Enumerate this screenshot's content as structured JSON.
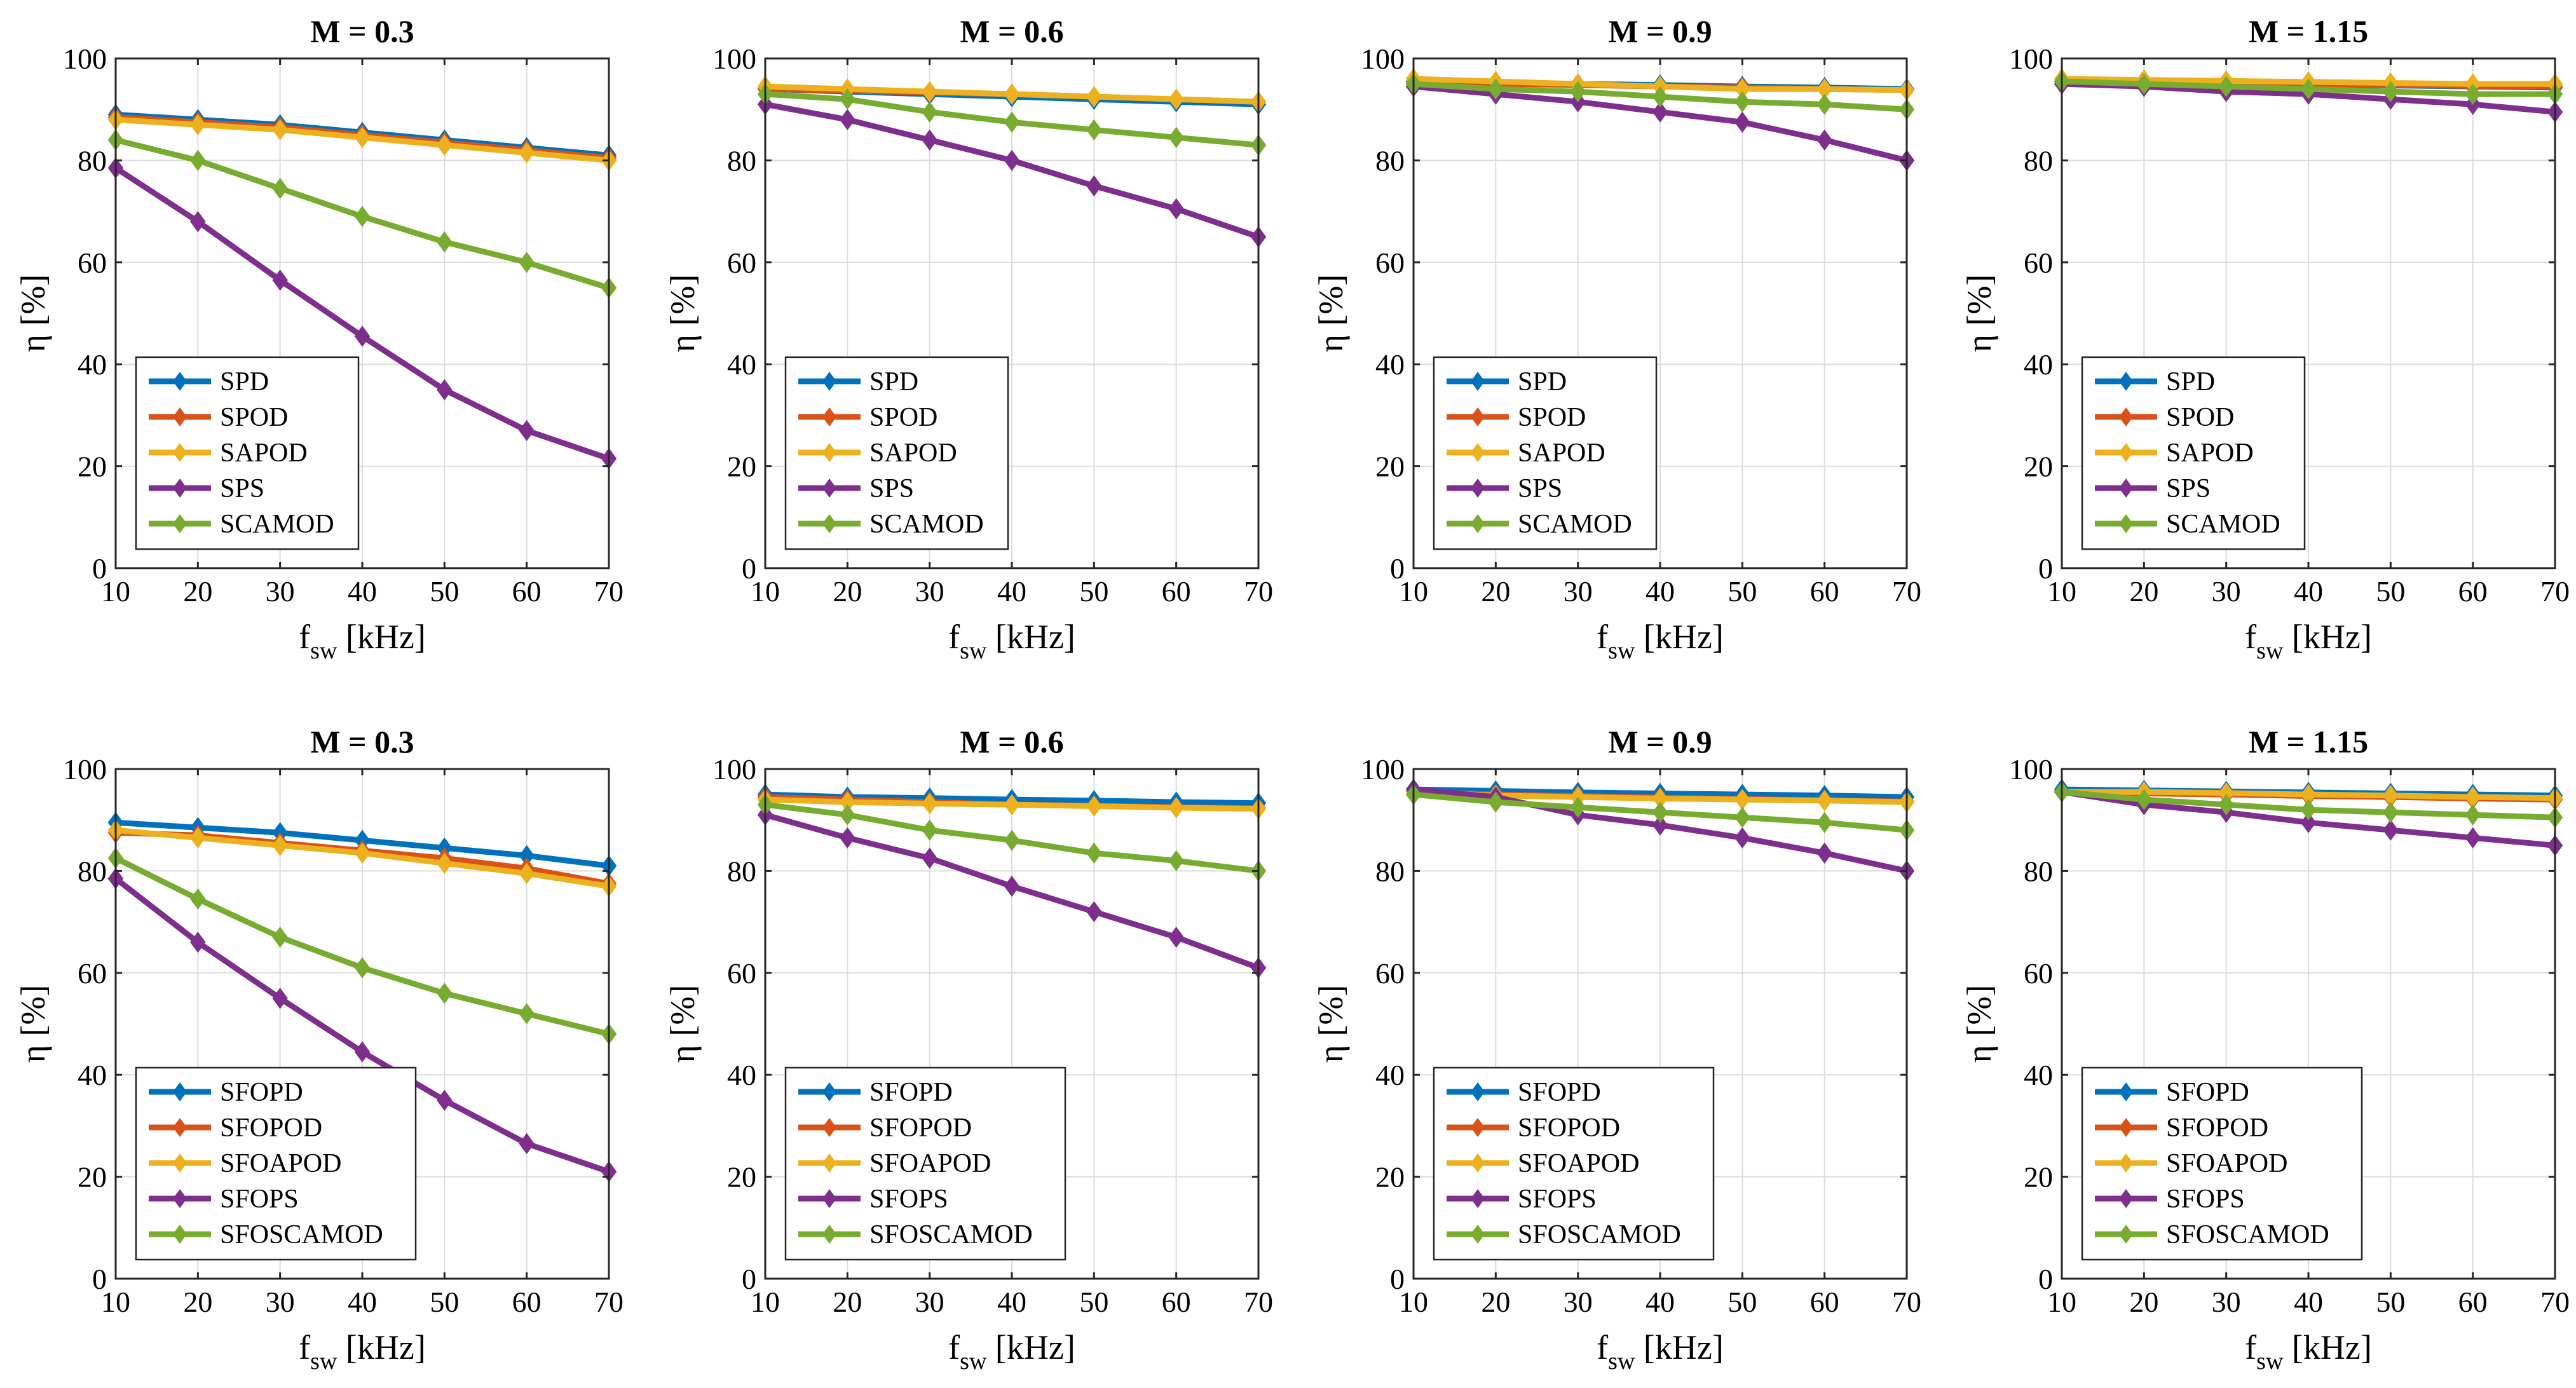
{
  "chart_data": [
    {
      "type": "line",
      "title": "M = 0.3",
      "xlabel": "f",
      "xlabel_sub": "sw",
      "xlabel_unit": " [kHz]",
      "ylabel": "η [%]",
      "xlim": [
        10,
        70
      ],
      "ylim": [
        0,
        100
      ],
      "xticks": [
        "10",
        "20",
        "30",
        "40",
        "50",
        "60",
        "70"
      ],
      "yticks": [
        "0",
        "20",
        "40",
        "60",
        "80",
        "100"
      ],
      "grid": true,
      "legend": "lower-left",
      "x": [
        10,
        20,
        30,
        40,
        50,
        60,
        70
      ],
      "series": [
        {
          "name": "SPD",
          "color": "#0072BD",
          "values": [
            89,
            88,
            87,
            85.5,
            84,
            82.5,
            81
          ]
        },
        {
          "name": "SPOD",
          "color": "#D95319",
          "values": [
            88.5,
            87.5,
            86.5,
            85,
            83.5,
            82,
            80.5
          ]
        },
        {
          "name": "SAPOD",
          "color": "#EDB120",
          "values": [
            88,
            87,
            86,
            84.5,
            83,
            81.5,
            80
          ]
        },
        {
          "name": "SPS",
          "color": "#7E2F8E",
          "values": [
            78.5,
            68,
            56.5,
            45.5,
            35,
            27,
            21.5
          ]
        },
        {
          "name": "SCAMOD",
          "color": "#77AC30",
          "values": [
            84,
            80,
            74.5,
            69,
            64,
            60,
            55
          ]
        }
      ]
    },
    {
      "type": "line",
      "title": "M = 0.6",
      "xlabel": "f",
      "xlabel_sub": "sw",
      "xlabel_unit": " [kHz]",
      "ylabel": "η [%]",
      "xlim": [
        10,
        70
      ],
      "ylim": [
        0,
        100
      ],
      "xticks": [
        "10",
        "20",
        "30",
        "40",
        "50",
        "60",
        "70"
      ],
      "yticks": [
        "0",
        "20",
        "40",
        "60",
        "80",
        "100"
      ],
      "grid": true,
      "legend": "lower-left",
      "x": [
        10,
        20,
        30,
        40,
        50,
        60,
        70
      ],
      "series": [
        {
          "name": "SPD",
          "color": "#0072BD",
          "values": [
            94,
            93.5,
            93,
            92.5,
            92,
            91.5,
            91
          ]
        },
        {
          "name": "SPOD",
          "color": "#D95319",
          "values": [
            94,
            93.7,
            93.3,
            93,
            92.5,
            92,
            91.5
          ]
        },
        {
          "name": "SAPOD",
          "color": "#EDB120",
          "values": [
            94.5,
            94,
            93.5,
            93,
            92.5,
            92,
            91.5
          ]
        },
        {
          "name": "SPS",
          "color": "#7E2F8E",
          "values": [
            91,
            88,
            84,
            80,
            75,
            70.5,
            65
          ]
        },
        {
          "name": "SCAMOD",
          "color": "#77AC30",
          "values": [
            93,
            92,
            89.5,
            87.5,
            86,
            84.5,
            83
          ]
        }
      ]
    },
    {
      "type": "line",
      "title": "M = 0.9",
      "xlabel": "f",
      "xlabel_sub": "sw",
      "xlabel_unit": " [kHz]",
      "ylabel": "η [%]",
      "xlim": [
        10,
        70
      ],
      "ylim": [
        0,
        100
      ],
      "xticks": [
        "10",
        "20",
        "30",
        "40",
        "50",
        "60",
        "70"
      ],
      "yticks": [
        "0",
        "20",
        "40",
        "60",
        "80",
        "100"
      ],
      "grid": true,
      "legend": "lower-left",
      "x": [
        10,
        20,
        30,
        40,
        50,
        60,
        70
      ],
      "series": [
        {
          "name": "SPD",
          "color": "#0072BD",
          "values": [
            95.5,
            95.3,
            95,
            94.8,
            94.5,
            94.3,
            94
          ]
        },
        {
          "name": "SPOD",
          "color": "#D95319",
          "values": [
            95.3,
            95,
            94.8,
            94.5,
            94.3,
            94,
            93.8
          ]
        },
        {
          "name": "SAPOD",
          "color": "#EDB120",
          "values": [
            96,
            95.5,
            95,
            94.5,
            94,
            94,
            93.8
          ]
        },
        {
          "name": "SPS",
          "color": "#7E2F8E",
          "values": [
            94.5,
            93,
            91.5,
            89.5,
            87.5,
            84,
            80
          ]
        },
        {
          "name": "SCAMOD",
          "color": "#77AC30",
          "values": [
            95,
            94,
            93.5,
            92.5,
            91.5,
            91,
            90
          ]
        }
      ]
    },
    {
      "type": "line",
      "title": "M = 1.15",
      "xlabel": "f",
      "xlabel_sub": "sw",
      "xlabel_unit": " [kHz]",
      "ylabel": "η [%]",
      "xlim": [
        10,
        70
      ],
      "ylim": [
        0,
        100
      ],
      "xticks": [
        "10",
        "20",
        "30",
        "40",
        "50",
        "60",
        "70"
      ],
      "yticks": [
        "0",
        "20",
        "40",
        "60",
        "80",
        "100"
      ],
      "grid": true,
      "legend": "lower-left",
      "x": [
        10,
        20,
        30,
        40,
        50,
        60,
        70
      ],
      "series": [
        {
          "name": "SPD",
          "color": "#0072BD",
          "values": [
            95.5,
            95.3,
            95,
            94.8,
            94.7,
            94.5,
            94.3
          ]
        },
        {
          "name": "SPOD",
          "color": "#D95319",
          "values": [
            95.5,
            95.3,
            95.2,
            95,
            94.8,
            94.6,
            94.5
          ]
        },
        {
          "name": "SAPOD",
          "color": "#EDB120",
          "values": [
            96,
            95.8,
            95.6,
            95.4,
            95.2,
            95,
            95
          ]
        },
        {
          "name": "SPS",
          "color": "#7E2F8E",
          "values": [
            95,
            94.5,
            93.5,
            93,
            92,
            91,
            89.5
          ]
        },
        {
          "name": "SCAMOD",
          "color": "#77AC30",
          "values": [
            95.5,
            95,
            94.5,
            94,
            93.5,
            93,
            93
          ]
        }
      ]
    },
    {
      "type": "line",
      "title": "M = 0.3",
      "xlabel": "f",
      "xlabel_sub": "sw",
      "xlabel_unit": " [kHz]",
      "ylabel": "η [%]",
      "xlim": [
        10,
        70
      ],
      "ylim": [
        0,
        100
      ],
      "xticks": [
        "10",
        "20",
        "30",
        "40",
        "50",
        "60",
        "70"
      ],
      "yticks": [
        "0",
        "20",
        "40",
        "60",
        "80",
        "100"
      ],
      "grid": true,
      "legend": "lower-left",
      "x": [
        10,
        20,
        30,
        40,
        50,
        60,
        70
      ],
      "series": [
        {
          "name": "SFOPD",
          "color": "#0072BD",
          "values": [
            89.5,
            88.5,
            87.5,
            86,
            84.5,
            83,
            81
          ]
        },
        {
          "name": "SFOPOD",
          "color": "#D95319",
          "values": [
            87.5,
            87,
            85.5,
            84,
            82.5,
            80.5,
            77.5
          ]
        },
        {
          "name": "SFOAPOD",
          "color": "#EDB120",
          "values": [
            88,
            86.5,
            85,
            83.5,
            81.5,
            79.5,
            77
          ]
        },
        {
          "name": "SFOPS",
          "color": "#7E2F8E",
          "values": [
            78.5,
            66,
            55,
            44.5,
            35,
            26.5,
            21
          ]
        },
        {
          "name": "SFOSCAMOD",
          "color": "#77AC30",
          "values": [
            82.5,
            74.5,
            67,
            61,
            56,
            52,
            48
          ]
        }
      ]
    },
    {
      "type": "line",
      "title": "M = 0.6",
      "xlabel": "f",
      "xlabel_sub": "sw",
      "xlabel_unit": " [kHz]",
      "ylabel": "η [%]",
      "xlim": [
        10,
        70
      ],
      "ylim": [
        0,
        100
      ],
      "xticks": [
        "10",
        "20",
        "30",
        "40",
        "50",
        "60",
        "70"
      ],
      "yticks": [
        "0",
        "20",
        "40",
        "60",
        "80",
        "100"
      ],
      "grid": true,
      "legend": "lower-left",
      "x": [
        10,
        20,
        30,
        40,
        50,
        60,
        70
      ],
      "series": [
        {
          "name": "SFOPD",
          "color": "#0072BD",
          "values": [
            95,
            94.5,
            94.3,
            94,
            93.8,
            93.5,
            93.3
          ]
        },
        {
          "name": "SFOPOD",
          "color": "#D95319",
          "values": [
            94.5,
            94,
            93.5,
            93,
            92.8,
            92.5,
            92.3
          ]
        },
        {
          "name": "SFOAPOD",
          "color": "#EDB120",
          "values": [
            94,
            93.5,
            93.2,
            93,
            92.7,
            92.4,
            92.2
          ]
        },
        {
          "name": "SFOPS",
          "color": "#7E2F8E",
          "values": [
            91,
            86.5,
            82.5,
            77,
            72,
            67,
            61
          ]
        },
        {
          "name": "SFOSCAMOD",
          "color": "#77AC30",
          "values": [
            93,
            91,
            88,
            86,
            83.5,
            82,
            80
          ]
        }
      ]
    },
    {
      "type": "line",
      "title": "M = 0.9",
      "xlabel": "f",
      "xlabel_sub": "sw",
      "xlabel_unit": " [kHz]",
      "ylabel": "η [%]",
      "xlim": [
        10,
        70
      ],
      "ylim": [
        0,
        100
      ],
      "xticks": [
        "10",
        "20",
        "30",
        "40",
        "50",
        "60",
        "70"
      ],
      "yticks": [
        "0",
        "20",
        "40",
        "60",
        "80",
        "100"
      ],
      "grid": true,
      "legend": "lower-left",
      "x": [
        10,
        20,
        30,
        40,
        50,
        60,
        70
      ],
      "series": [
        {
          "name": "SFOPD",
          "color": "#0072BD",
          "values": [
            96,
            95.7,
            95.4,
            95.2,
            95,
            94.8,
            94.5
          ]
        },
        {
          "name": "SFOPOD",
          "color": "#D95319",
          "values": [
            95.5,
            95,
            94.7,
            94.4,
            94.1,
            93.9,
            93.6
          ]
        },
        {
          "name": "SFOAPOD",
          "color": "#EDB120",
          "values": [
            95.5,
            94.8,
            94.5,
            94.2,
            94,
            93.8,
            93.5
          ]
        },
        {
          "name": "SFOPS",
          "color": "#7E2F8E",
          "values": [
            96,
            94.5,
            91,
            89,
            86.5,
            83.5,
            80
          ]
        },
        {
          "name": "SFOSCAMOD",
          "color": "#77AC30",
          "values": [
            95,
            93.5,
            92.5,
            91.5,
            90.5,
            89.5,
            88
          ]
        }
      ]
    },
    {
      "type": "line",
      "title": "M = 1.15",
      "xlabel": "f",
      "xlabel_sub": "sw",
      "xlabel_unit": " [kHz]",
      "ylabel": "η [%]",
      "xlim": [
        10,
        70
      ],
      "ylim": [
        0,
        100
      ],
      "xticks": [
        "10",
        "20",
        "30",
        "40",
        "50",
        "60",
        "70"
      ],
      "yticks": [
        "0",
        "20",
        "40",
        "60",
        "80",
        "100"
      ],
      "grid": true,
      "legend": "lower-left",
      "x": [
        10,
        20,
        30,
        40,
        50,
        60,
        70
      ],
      "series": [
        {
          "name": "SFOPD",
          "color": "#0072BD",
          "values": [
            96,
            95.8,
            95.6,
            95.4,
            95.2,
            95,
            94.8
          ]
        },
        {
          "name": "SFOPOD",
          "color": "#D95319",
          "values": [
            95.5,
            95.2,
            95,
            94.7,
            94.5,
            94.2,
            94
          ]
        },
        {
          "name": "SFOAPOD",
          "color": "#EDB120",
          "values": [
            95.5,
            95.5,
            95.3,
            95,
            94.8,
            94.5,
            94.3
          ]
        },
        {
          "name": "SFOPS",
          "color": "#7E2F8E",
          "values": [
            95.5,
            93,
            91.5,
            89.5,
            88,
            86.5,
            85
          ]
        },
        {
          "name": "SFOSCAMOD",
          "color": "#77AC30",
          "values": [
            95.5,
            94,
            93,
            92,
            91.5,
            91,
            90.5
          ]
        }
      ]
    }
  ]
}
